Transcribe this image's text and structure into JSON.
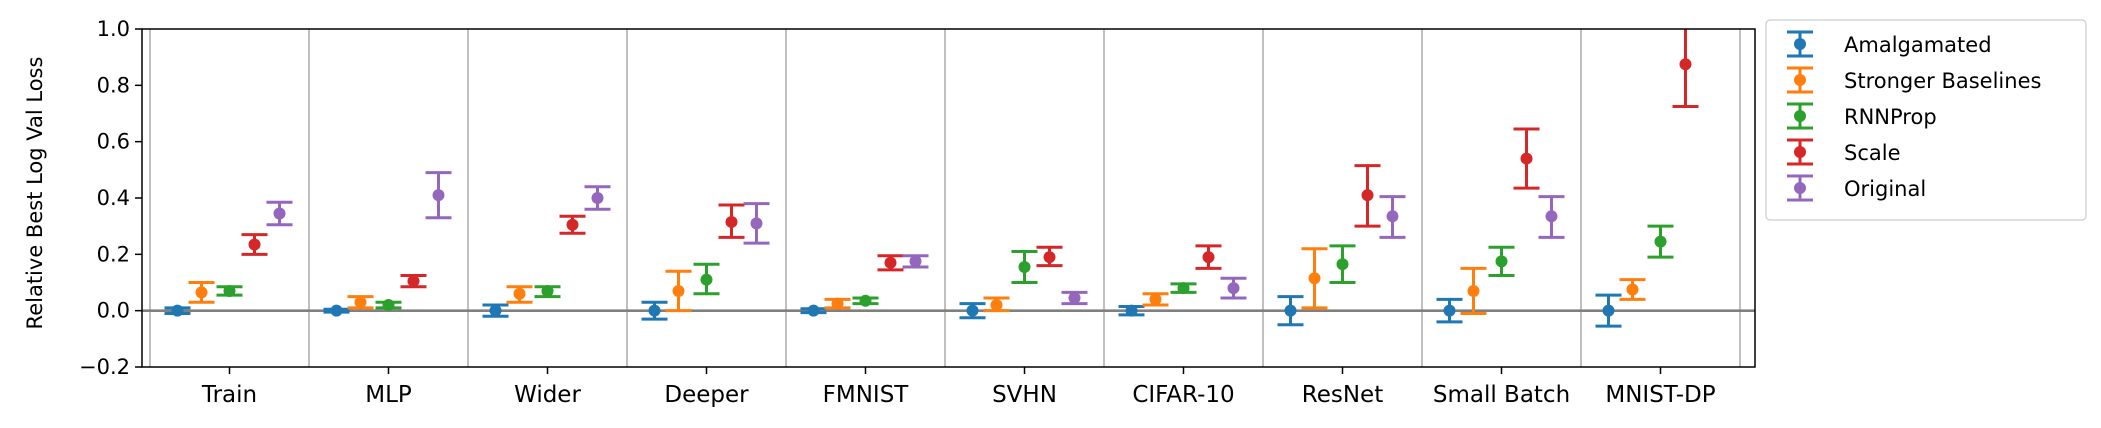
{
  "chart_data": {
    "type": "errorbar",
    "ylabel": "Relative Best Log Val Loss",
    "xlabel": "",
    "ylim": [
      -0.2,
      1.0
    ],
    "yticks": [
      -0.2,
      0.0,
      0.2,
      0.4,
      0.6,
      0.8,
      1.0
    ],
    "ytick_labels": [
      "−0.2",
      "0.0",
      "0.2",
      "0.4",
      "0.6",
      "0.8",
      "1.0"
    ],
    "grid": "vertical separators between categories",
    "legend_position": "outside-right-top",
    "reference_line_y": 0.0,
    "categories": [
      "Train",
      "MLP",
      "Wider",
      "Deeper",
      "FMNIST",
      "SVHN",
      "CIFAR-10",
      "ResNet",
      "Small Batch",
      "MNIST-DP"
    ],
    "series": [
      {
        "name": "Amalgamated",
        "color": "#1f77b4",
        "values": [
          0.0,
          0.0,
          0.0,
          0.0,
          0.0,
          0.0,
          0.0,
          0.0,
          0.0,
          0.0
        ],
        "err_low": [
          -0.01,
          -0.005,
          -0.02,
          -0.03,
          -0.007,
          -0.025,
          -0.015,
          -0.05,
          -0.04,
          -0.055
        ],
        "err_high": [
          0.01,
          0.005,
          0.02,
          0.03,
          0.007,
          0.025,
          0.015,
          0.05,
          0.04,
          0.055
        ]
      },
      {
        "name": "Stronger Baselines",
        "color": "#ff7f0e",
        "values": [
          0.065,
          0.03,
          0.06,
          0.07,
          0.025,
          0.02,
          0.04,
          0.115,
          0.07,
          0.075
        ],
        "err_low": [
          0.03,
          0.01,
          0.03,
          0.0,
          0.01,
          0.0,
          0.02,
          0.01,
          -0.01,
          0.04
        ],
        "err_high": [
          0.1,
          0.05,
          0.085,
          0.14,
          0.04,
          0.045,
          0.06,
          0.22,
          0.15,
          0.11
        ]
      },
      {
        "name": "RNNProp",
        "color": "#2ca02c",
        "values": [
          0.07,
          0.02,
          0.07,
          0.11,
          0.035,
          0.155,
          0.08,
          0.165,
          0.175,
          0.245
        ],
        "err_low": [
          0.055,
          0.01,
          0.05,
          0.06,
          0.025,
          0.1,
          0.065,
          0.1,
          0.125,
          0.19
        ],
        "err_high": [
          0.085,
          0.03,
          0.085,
          0.165,
          0.045,
          0.21,
          0.095,
          0.23,
          0.225,
          0.3
        ]
      },
      {
        "name": "Scale",
        "color": "#d62728",
        "values": [
          0.235,
          0.105,
          0.305,
          0.315,
          0.17,
          0.19,
          0.19,
          0.41,
          0.54,
          0.875
        ],
        "err_low": [
          0.2,
          0.085,
          0.275,
          0.26,
          0.145,
          0.16,
          0.15,
          0.3,
          0.435,
          0.725
        ],
        "err_high": [
          0.27,
          0.125,
          0.335,
          0.375,
          0.195,
          0.225,
          0.23,
          0.515,
          0.645,
          1.02
        ]
      },
      {
        "name": "Original",
        "color": "#9467bd",
        "values": [
          0.345,
          0.41,
          0.4,
          0.31,
          0.175,
          0.045,
          0.08,
          0.335,
          0.335,
          null
        ],
        "err_low": [
          0.305,
          0.33,
          0.36,
          0.24,
          0.155,
          0.025,
          0.045,
          0.26,
          0.26,
          null
        ],
        "err_high": [
          0.385,
          0.49,
          0.44,
          0.38,
          0.195,
          0.065,
          0.115,
          0.405,
          0.405,
          null
        ]
      }
    ]
  }
}
